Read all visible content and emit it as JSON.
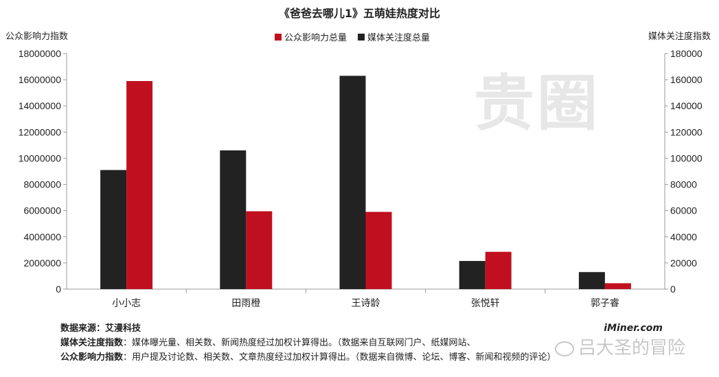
{
  "chart_data": {
    "type": "bar",
    "title": "《爸爸去哪儿1》五萌娃热度对比",
    "categories": [
      "小小志",
      "田雨橙",
      "王诗龄",
      "张悦轩",
      "郭子睿"
    ],
    "series": [
      {
        "name": "媒体关注度总量",
        "axis": "right",
        "color": "#222222",
        "values": [
          91000,
          106000,
          163000,
          21500,
          13000
        ]
      },
      {
        "name": "公众影响力总量",
        "axis": "left",
        "color": "#c0101f",
        "values": [
          15900000,
          5950000,
          5900000,
          2850000,
          450000
        ]
      }
    ],
    "ylabel_left": "公众影响力指数",
    "ylabel_right": "媒体关注度指数",
    "ylim_left": [
      0,
      18000000
    ],
    "ylim_right": [
      0,
      180000
    ],
    "yticks_left": [
      "0",
      "2000000",
      "4000000",
      "6000000",
      "8000000",
      "10000000",
      "12000000",
      "14000000",
      "16000000",
      "18000000"
    ],
    "yticks_right": [
      "0",
      "20000",
      "40000",
      "60000",
      "80000",
      "100000",
      "120000",
      "140000",
      "160000",
      "180000"
    ],
    "grid": false,
    "legend_position": "top-center"
  },
  "legend": {
    "influence": "公众影响力总量",
    "attention": "媒体关注度总量",
    "influence_color": "#c0101f",
    "attention_color": "#222222"
  },
  "footer": {
    "source_label": "数据来源：艾漫科技",
    "attention_label": "媒体关注度指数",
    "attention_text": "：媒体曝光量、相关数、新闻热度经过加权计算得出。（数据来自互联网门户、纸媒网站、",
    "influence_label": "公众影响力指数",
    "influence_text": "：用户提及讨论数、相关数、文章热度经过加权计算得出。（数据来自微博、论坛、博客、新闻和视频的评论）",
    "brand": "iMiner.com"
  },
  "watermarks": {
    "main": "贵圈",
    "wechat": "吕大圣的冒险"
  }
}
